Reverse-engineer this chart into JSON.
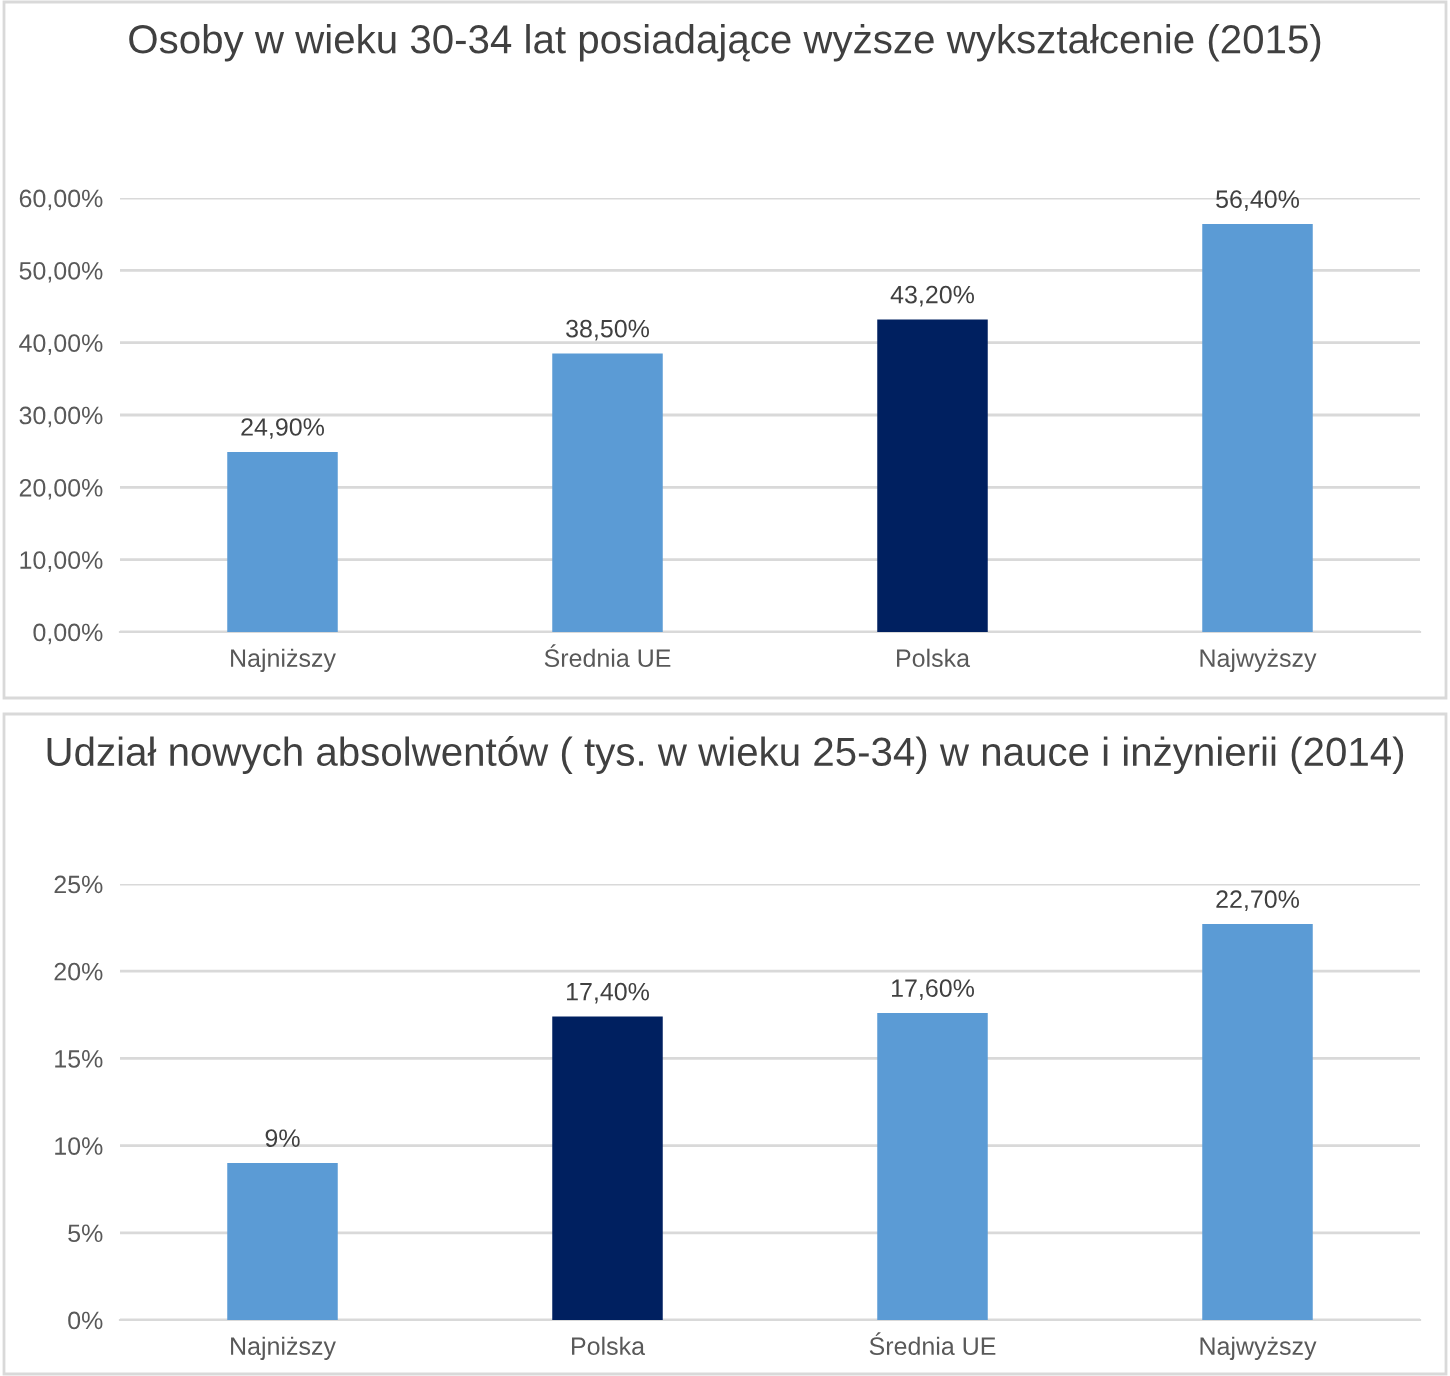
{
  "chart_data": [
    {
      "type": "bar",
      "title": "Osoby w wieku 30-34 lat posiadające wyższe wykształcenie (2015)",
      "categories": [
        "Najniższy",
        "Średnia UE",
        "Polska",
        "Najwyższy"
      ],
      "values": [
        24.9,
        38.5,
        43.2,
        56.4
      ],
      "colors": [
        "#5b9bd5",
        "#5b9bd5",
        "#002060",
        "#5b9bd5"
      ],
      "value_labels": [
        "24,90%",
        "38,50%",
        "43,20%",
        "56,40%"
      ],
      "ylim": [
        0,
        60
      ],
      "yticks": [
        {
          "value": 0,
          "label": "0,00%"
        },
        {
          "value": 10,
          "label": "10,00%"
        },
        {
          "value": 20,
          "label": "20,00%"
        },
        {
          "value": 30,
          "label": "30,00%"
        },
        {
          "value": 40,
          "label": "40,00%"
        },
        {
          "value": 50,
          "label": "50,00%"
        },
        {
          "value": 60,
          "label": "60,00%"
        }
      ],
      "grid": "y",
      "legend": false
    },
    {
      "type": "bar",
      "title": "Udział nowych absolwentów ( tys. w wieku 25-34) w nauce i inżynierii (2014)",
      "categories": [
        "Najniższy",
        "Polska",
        "Średnia UE",
        "Najwyższy"
      ],
      "values": [
        9,
        17.4,
        17.6,
        22.7
      ],
      "colors": [
        "#5b9bd5",
        "#002060",
        "#5b9bd5",
        "#5b9bd5"
      ],
      "value_labels": [
        "9%",
        "17,40%",
        "17,60%",
        "22,70%"
      ],
      "ylim": [
        0,
        25
      ],
      "yticks": [
        {
          "value": 0,
          "label": "0%"
        },
        {
          "value": 5,
          "label": "5%"
        },
        {
          "value": 10,
          "label": "10%"
        },
        {
          "value": 15,
          "label": "15%"
        },
        {
          "value": 20,
          "label": "20%"
        },
        {
          "value": 25,
          "label": "25%"
        }
      ],
      "grid": "y",
      "legend": false
    }
  ]
}
